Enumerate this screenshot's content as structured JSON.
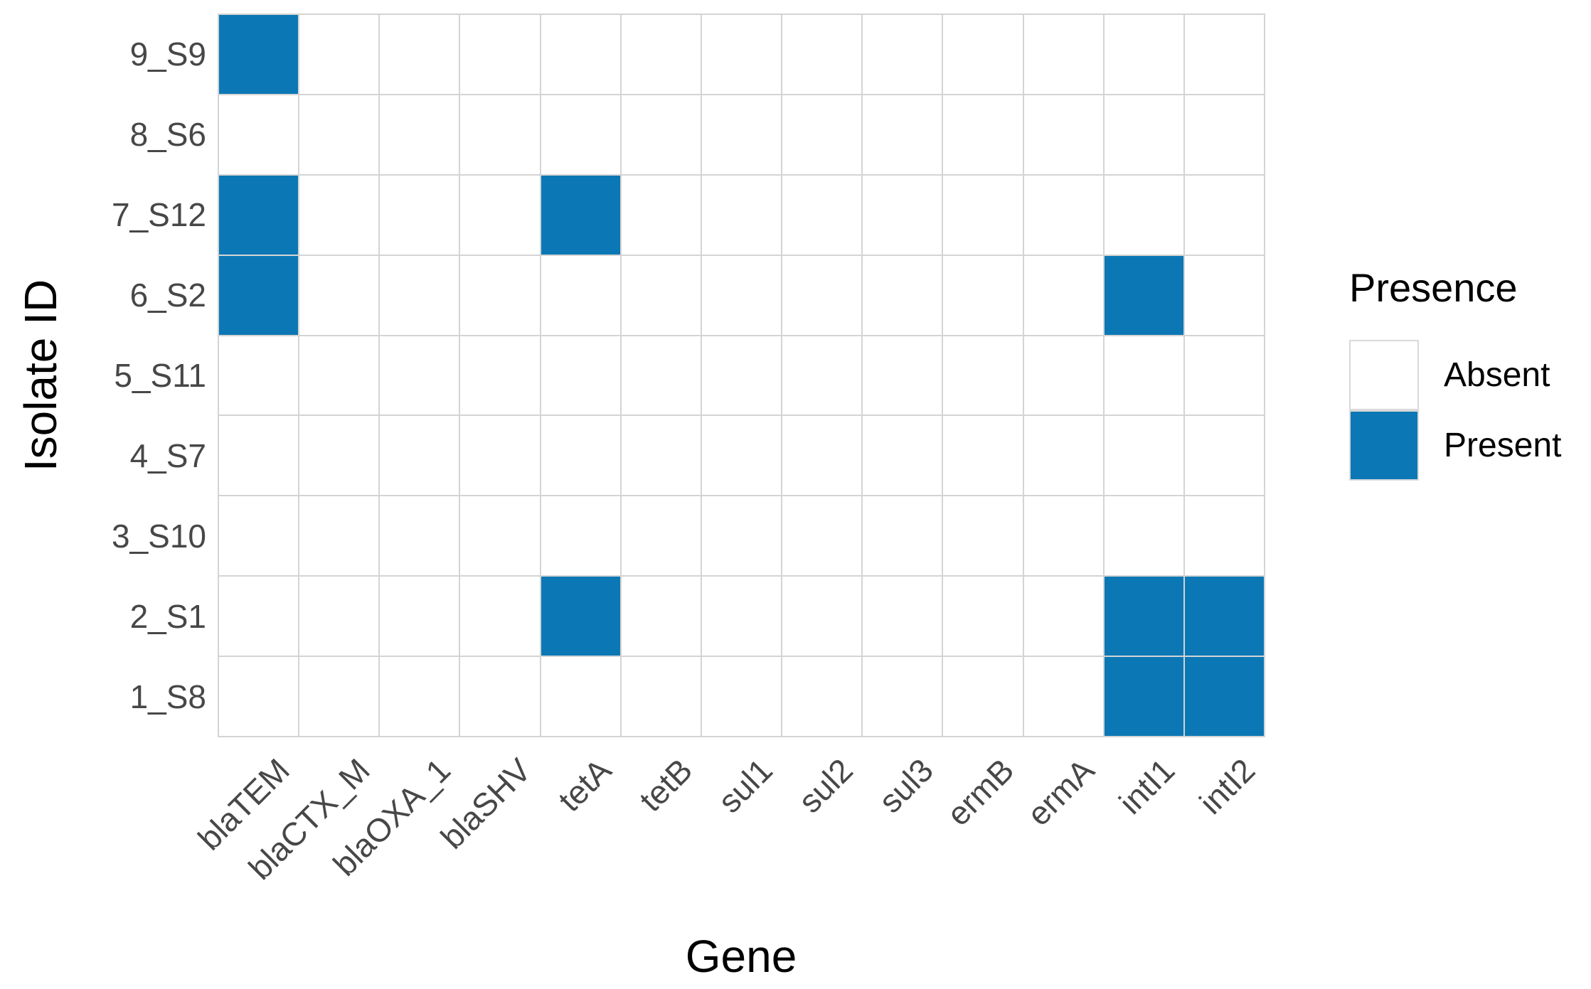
{
  "figure": {
    "x_axis_title": "Gene",
    "y_axis_title": "Isolate ID",
    "background_color": "#ffffff"
  },
  "legend": {
    "title": "Presence",
    "position": "right",
    "items": [
      {
        "label": "Absent",
        "color": "#ffffff"
      },
      {
        "label": "Present",
        "color": "#0b78b5"
      }
    ]
  },
  "chart_data": {
    "type": "heatmap",
    "xlabel": "Gene",
    "ylabel": "Isolate ID",
    "legend_title": "Presence",
    "legend_position": "right",
    "grid": true,
    "grid_color": "#d4d4d4",
    "absent_color": "#ffffff",
    "present_color": "#0b78b5",
    "tick_label_color": "#474747",
    "x_categories": [
      "blaTEM",
      "blaCTX_M",
      "blaOXA_1",
      "blaSHV",
      "tetA",
      "tetB",
      "sul1",
      "sul2",
      "sul3",
      "ermB",
      "ermA",
      "intI1",
      "intI2"
    ],
    "y_categories_top_to_bottom": [
      "9_S9",
      "8_S6",
      "7_S12",
      "6_S2",
      "5_S11",
      "4_S7",
      "3_S10",
      "2_S1",
      "1_S8"
    ],
    "value_labels": {
      "0": "Absent",
      "1": "Present"
    },
    "values_rows_top_to_bottom": [
      [
        1,
        0,
        0,
        0,
        0,
        0,
        0,
        0,
        0,
        0,
        0,
        0,
        0
      ],
      [
        0,
        0,
        0,
        0,
        0,
        0,
        0,
        0,
        0,
        0,
        0,
        0,
        0
      ],
      [
        1,
        0,
        0,
        0,
        1,
        0,
        0,
        0,
        0,
        0,
        0,
        0,
        0
      ],
      [
        1,
        0,
        0,
        0,
        0,
        0,
        0,
        0,
        0,
        0,
        0,
        1,
        0
      ],
      [
        0,
        0,
        0,
        0,
        0,
        0,
        0,
        0,
        0,
        0,
        0,
        0,
        0
      ],
      [
        0,
        0,
        0,
        0,
        0,
        0,
        0,
        0,
        0,
        0,
        0,
        0,
        0
      ],
      [
        0,
        0,
        0,
        0,
        0,
        0,
        0,
        0,
        0,
        0,
        0,
        0,
        0
      ],
      [
        0,
        0,
        0,
        0,
        1,
        0,
        0,
        0,
        0,
        0,
        0,
        1,
        1
      ],
      [
        0,
        0,
        0,
        0,
        0,
        0,
        0,
        0,
        0,
        0,
        0,
        1,
        1
      ]
    ],
    "present_cells": [
      [
        "9_S9",
        "blaTEM"
      ],
      [
        "7_S12",
        "blaTEM"
      ],
      [
        "7_S12",
        "tetA"
      ],
      [
        "6_S2",
        "blaTEM"
      ],
      [
        "6_S2",
        "intI1"
      ],
      [
        "2_S1",
        "tetA"
      ],
      [
        "2_S1",
        "intI1"
      ],
      [
        "2_S1",
        "intI2"
      ],
      [
        "1_S8",
        "intI1"
      ],
      [
        "1_S8",
        "intI2"
      ]
    ]
  }
}
